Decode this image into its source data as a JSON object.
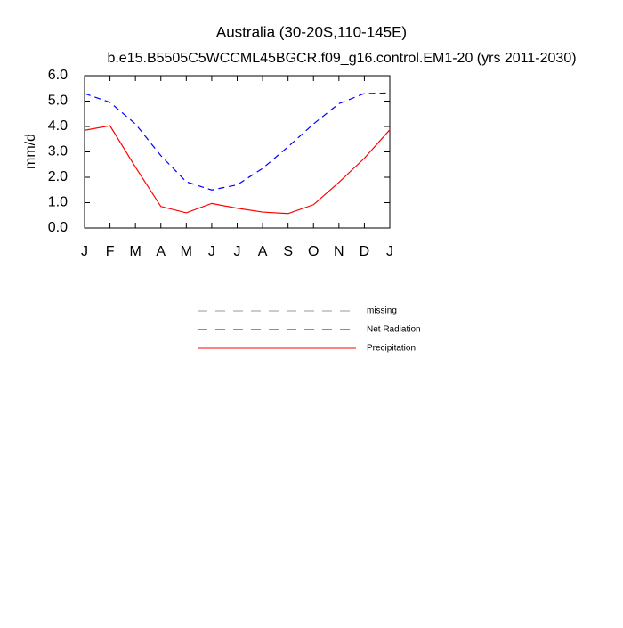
{
  "chart_data": {
    "type": "line",
    "title": "Australia (30-20S,110-145E)",
    "subtitle": "b.e15.B5505C5WCCML45BGCR.f09_g16.control.EM1-20 (yrs 2011-2030)",
    "y_label": "mm/d",
    "categories": [
      "J",
      "F",
      "M",
      "A",
      "M",
      "J",
      "J",
      "A",
      "S",
      "O",
      "N",
      "D",
      "J"
    ],
    "series": [
      {
        "name": "missing",
        "color": "#999999",
        "dashed": true,
        "values": [
          null,
          null,
          null,
          null,
          null,
          null,
          null,
          null,
          null,
          null,
          null,
          null,
          null
        ]
      },
      {
        "name": "Net Radiation",
        "color": "#0000ff",
        "dashed": true,
        "values": [
          5.3,
          4.95,
          4.1,
          2.85,
          1.82,
          1.5,
          1.7,
          2.35,
          3.2,
          4.1,
          4.9,
          5.3,
          5.32
        ]
      },
      {
        "name": "Precipitation",
        "color": "#ff0000",
        "dashed": false,
        "values": [
          3.85,
          4.03,
          2.4,
          0.85,
          0.6,
          0.97,
          0.78,
          0.63,
          0.57,
          0.92,
          1.8,
          2.75,
          3.87
        ]
      }
    ],
    "ylim": [
      0,
      6
    ],
    "yticks": [
      {
        "value": 0,
        "label": "0.0"
      },
      {
        "value": 1,
        "label": "1.0"
      },
      {
        "value": 2,
        "label": "2.0"
      },
      {
        "value": 3,
        "label": "3.0"
      },
      {
        "value": 4,
        "label": "4.0"
      },
      {
        "value": 5,
        "label": "5.0"
      },
      {
        "value": 6,
        "label": "6.0"
      }
    ],
    "grid": false
  }
}
